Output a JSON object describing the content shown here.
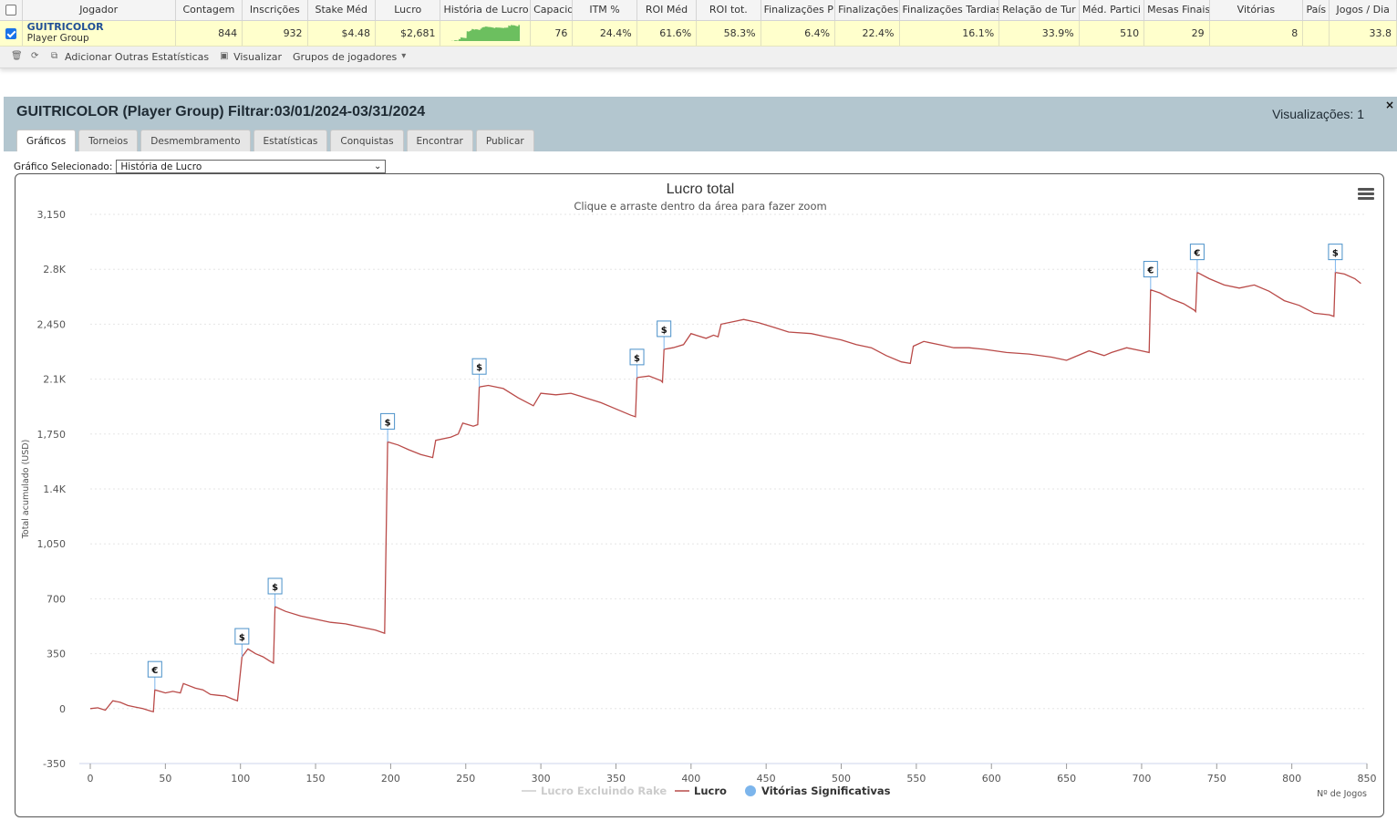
{
  "grid": {
    "headers": [
      "Jogador",
      "Contagem",
      "Inscrições",
      "Stake Méd",
      "Lucro",
      "História de Lucro",
      "Capacidade",
      "ITM %",
      "ROI Méd",
      "ROI tot.",
      "Finalizações P",
      "Finalizações",
      "Finalizações Tardias",
      "Relação de Tur",
      "Méd. Partici",
      "Mesas Finais",
      "Vitórias",
      "País",
      "Jogos / Dia"
    ],
    "row": {
      "player_name": "GUITRICOLOR",
      "player_type": "Player Group",
      "contagem": "844",
      "inscricoes": "932",
      "stake_med": "$4.48",
      "lucro": "$2,681",
      "capacidade": "76",
      "itm": "24.4%",
      "roi_med": "61.6%",
      "roi_tot": "58.3%",
      "finalizacoes_p": "6.4%",
      "finalizacoes": "22.4%",
      "finalizacoes_tardias": "16.1%",
      "relacao_tur": "33.9%",
      "med_partici": "510",
      "mesas_finais": "29",
      "vitorias": "8",
      "pais": "",
      "jogos_dia": "33.8"
    },
    "spark_color": "#6cbf5f"
  },
  "toolbar": {
    "add_stats": "Adicionar Outras Estatísticas",
    "visualize": "Visualizar",
    "groups": "Grupos de jogadores"
  },
  "panel": {
    "title": "GUITRICOLOR (Player Group) Filtrar:03/01/2024-03/31/2024",
    "views": "Visualizações: 1",
    "close": "×",
    "tabs": [
      "Gráficos",
      "Torneios",
      "Desmembramento",
      "Estatísticas",
      "Conquistas",
      "Encontrar",
      "Publicar"
    ],
    "selector_label": "Gráfico Selecionado:",
    "selector_value": "História de Lucro"
  },
  "chart_data": {
    "type": "line",
    "title": "Lucro total",
    "subtitle": "Clique e arraste dentro da área para fazer zoom",
    "ylabel": "Total acumulado (USD)",
    "xlabel": "Nº de Jogos",
    "xlim": [
      0,
      850
    ],
    "ylim": [
      -350,
      3150
    ],
    "x_ticks": [
      "0",
      "50",
      "100",
      "150",
      "200",
      "250",
      "300",
      "350",
      "400",
      "450",
      "500",
      "550",
      "600",
      "650",
      "700",
      "750",
      "800",
      "850"
    ],
    "y_ticks": [
      "3,150",
      "2.8K",
      "2,450",
      "2.1K",
      "1,750",
      "1.4K",
      "1,050",
      "700",
      "350",
      "0",
      "-350"
    ],
    "legend": [
      "Lucro Excluindo Rake",
      "Lucro",
      "Vitórias Significativas"
    ],
    "line_color": "#b94a48",
    "series": [
      {
        "name": "Lucro",
        "points": [
          [
            0,
            0
          ],
          [
            5,
            5
          ],
          [
            10,
            -10
          ],
          [
            15,
            50
          ],
          [
            20,
            40
          ],
          [
            25,
            20
          ],
          [
            30,
            10
          ],
          [
            35,
            0
          ],
          [
            40,
            -15
          ],
          [
            42,
            -20
          ],
          [
            43,
            120
          ],
          [
            50,
            100
          ],
          [
            55,
            110
          ],
          [
            60,
            100
          ],
          [
            62,
            160
          ],
          [
            70,
            130
          ],
          [
            75,
            120
          ],
          [
            80,
            90
          ],
          [
            85,
            85
          ],
          [
            90,
            80
          ],
          [
            95,
            60
          ],
          [
            98,
            50
          ],
          [
            101,
            330
          ],
          [
            105,
            380
          ],
          [
            110,
            350
          ],
          [
            115,
            330
          ],
          [
            120,
            300
          ],
          [
            122,
            290
          ],
          [
            123,
            650
          ],
          [
            130,
            620
          ],
          [
            140,
            590
          ],
          [
            150,
            570
          ],
          [
            160,
            550
          ],
          [
            170,
            540
          ],
          [
            180,
            520
          ],
          [
            190,
            500
          ],
          [
            196,
            480
          ],
          [
            198,
            1700
          ],
          [
            205,
            1680
          ],
          [
            212,
            1650
          ],
          [
            220,
            1620
          ],
          [
            228,
            1600
          ],
          [
            230,
            1710
          ],
          [
            240,
            1730
          ],
          [
            245,
            1750
          ],
          [
            248,
            1820
          ],
          [
            255,
            1800
          ],
          [
            258,
            1810
          ],
          [
            259,
            2050
          ],
          [
            265,
            2060
          ],
          [
            275,
            2040
          ],
          [
            285,
            1980
          ],
          [
            295,
            1930
          ],
          [
            300,
            2010
          ],
          [
            310,
            2000
          ],
          [
            320,
            2010
          ],
          [
            330,
            1980
          ],
          [
            340,
            1950
          ],
          [
            350,
            1910
          ],
          [
            360,
            1870
          ],
          [
            363,
            1860
          ],
          [
            364,
            2110
          ],
          [
            372,
            2120
          ],
          [
            380,
            2090
          ],
          [
            381,
            2080
          ],
          [
            382,
            2290
          ],
          [
            388,
            2300
          ],
          [
            395,
            2320
          ],
          [
            400,
            2390
          ],
          [
            410,
            2360
          ],
          [
            415,
            2380
          ],
          [
            418,
            2370
          ],
          [
            420,
            2450
          ],
          [
            430,
            2470
          ],
          [
            435,
            2480
          ],
          [
            445,
            2460
          ],
          [
            455,
            2430
          ],
          [
            465,
            2400
          ],
          [
            480,
            2390
          ],
          [
            490,
            2370
          ],
          [
            500,
            2350
          ],
          [
            510,
            2320
          ],
          [
            520,
            2300
          ],
          [
            530,
            2250
          ],
          [
            540,
            2210
          ],
          [
            546,
            2200
          ],
          [
            548,
            2310
          ],
          [
            555,
            2340
          ],
          [
            565,
            2320
          ],
          [
            575,
            2300
          ],
          [
            585,
            2300
          ],
          [
            595,
            2290
          ],
          [
            610,
            2270
          ],
          [
            625,
            2260
          ],
          [
            640,
            2240
          ],
          [
            650,
            2220
          ],
          [
            655,
            2240
          ],
          [
            665,
            2280
          ],
          [
            675,
            2250
          ],
          [
            680,
            2270
          ],
          [
            690,
            2300
          ],
          [
            700,
            2280
          ],
          [
            705,
            2270
          ],
          [
            706,
            2670
          ],
          [
            712,
            2650
          ],
          [
            720,
            2610
          ],
          [
            728,
            2580
          ],
          [
            735,
            2540
          ],
          [
            736,
            2530
          ],
          [
            737,
            2780
          ],
          [
            745,
            2740
          ],
          [
            755,
            2700
          ],
          [
            765,
            2680
          ],
          [
            775,
            2700
          ],
          [
            785,
            2660
          ],
          [
            795,
            2600
          ],
          [
            805,
            2570
          ],
          [
            815,
            2520
          ],
          [
            825,
            2510
          ],
          [
            828,
            2500
          ],
          [
            829,
            2780
          ],
          [
            835,
            2770
          ],
          [
            842,
            2740
          ],
          [
            846,
            2710
          ]
        ]
      }
    ],
    "flags": [
      {
        "x": 43,
        "y": 120,
        "label": "€"
      },
      {
        "x": 101,
        "y": 330,
        "label": "$"
      },
      {
        "x": 123,
        "y": 650,
        "label": "$"
      },
      {
        "x": 198,
        "y": 1700,
        "label": "$"
      },
      {
        "x": 259,
        "y": 2050,
        "label": "$"
      },
      {
        "x": 364,
        "y": 2110,
        "label": "$"
      },
      {
        "x": 382,
        "y": 2290,
        "label": "$"
      },
      {
        "x": 706,
        "y": 2670,
        "label": "€"
      },
      {
        "x": 737,
        "y": 2780,
        "label": "€"
      },
      {
        "x": 829,
        "y": 2780,
        "label": "$"
      }
    ]
  }
}
